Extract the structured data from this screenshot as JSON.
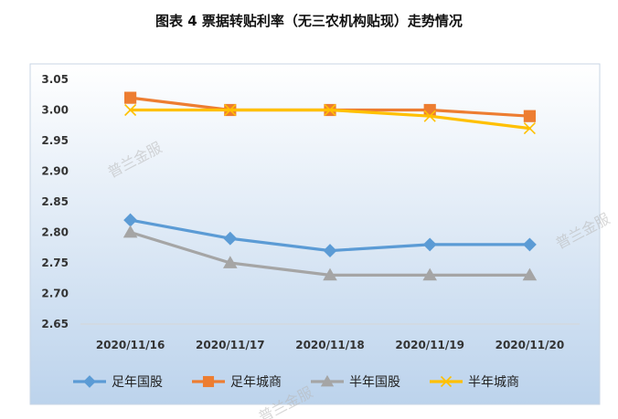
{
  "chart_data": {
    "type": "line",
    "title": "图表 4  票据转贴利率（无三农机构贴现）走势情况",
    "categories": [
      "2020/11/16",
      "2020/11/17",
      "2020/11/18",
      "2020/11/19",
      "2020/11/20"
    ],
    "ylim": [
      2.65,
      3.05
    ],
    "yticks": [
      "3.05",
      "3.00",
      "2.95",
      "2.90",
      "2.85",
      "2.80",
      "2.75",
      "2.70",
      "2.65"
    ],
    "legend_position": "bottom",
    "grid": false,
    "series": [
      {
        "name": "足年国股",
        "color": "#5B9BD5",
        "marker": "diamond",
        "values": [
          2.82,
          2.79,
          2.77,
          2.78,
          2.78
        ]
      },
      {
        "name": "足年城商",
        "color": "#ED7D31",
        "marker": "square",
        "values": [
          3.02,
          3.0,
          3.0,
          3.0,
          2.99
        ]
      },
      {
        "name": "半年国股",
        "color": "#A5A5A5",
        "marker": "triangle",
        "values": [
          2.8,
          2.75,
          2.73,
          2.73,
          2.73
        ]
      },
      {
        "name": "半年城商",
        "color": "#FFC000",
        "marker": "x",
        "values": [
          3.0,
          3.0,
          3.0,
          2.99,
          2.97
        ]
      }
    ],
    "watermarks": [
      "普兰金服",
      "普兰金服",
      "普兰金服"
    ]
  }
}
